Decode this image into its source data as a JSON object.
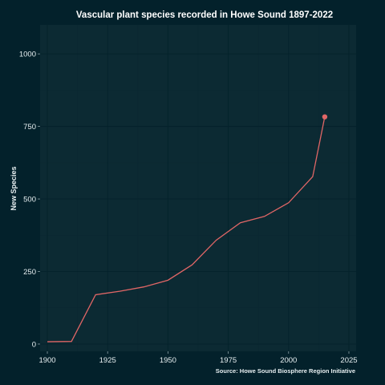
{
  "chart_data": {
    "type": "line",
    "title": "Vascular plant species recorded in Howe Sound 1897-2022",
    "xlabel": "",
    "ylabel": "New Species",
    "caption": "Source: Howe Sound Biosphere Region Initiative",
    "x": [
      1900,
      1910,
      1920,
      1930,
      1940,
      1950,
      1960,
      1970,
      1980,
      1990,
      2000,
      2010,
      2015
    ],
    "y": [
      8,
      9,
      170,
      182,
      197,
      220,
      273,
      358,
      418,
      440,
      487,
      577,
      783
    ],
    "highlight_point": {
      "x": 2015,
      "y": 783
    },
    "xlim": [
      1897,
      2028
    ],
    "ylim": [
      -25,
      1100
    ],
    "xticks": [
      1900,
      1925,
      1950,
      1975,
      2000,
      2025
    ],
    "yticks": [
      0,
      250,
      500,
      750,
      1000
    ],
    "grid": true,
    "colors": {
      "background": "#03212b",
      "panel": "#0c2a33",
      "line": "#e06666",
      "text": "#e6eef0"
    }
  }
}
